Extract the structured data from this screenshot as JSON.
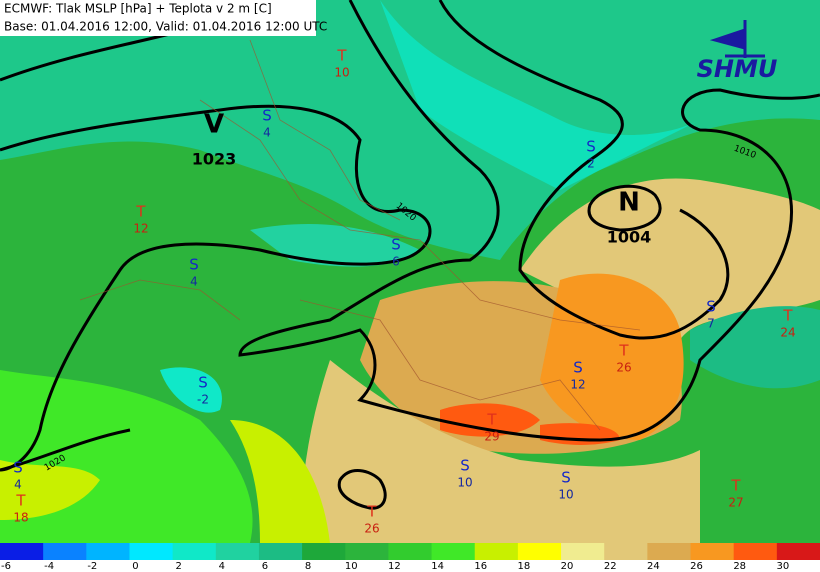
{
  "header": {
    "line1": "ECMWF: Tlak MSLP [hPa] + Teplota v 2 m [C]",
    "line2": "Base: 01.04.2016 12:00, Valid: 01.04.2016 12:00 UTC"
  },
  "logo": "SHMU",
  "pressure_centers": [
    {
      "symbol": "V",
      "value": 1023
    },
    {
      "symbol": "N",
      "value": 1004
    }
  ],
  "isobar_labels": [
    1020,
    1010,
    1020
  ],
  "stations": [
    {
      "symbol": "T",
      "value": 10
    },
    {
      "symbol": "S",
      "value": 4
    },
    {
      "symbol": "S",
      "value": 2
    },
    {
      "symbol": "T",
      "value": 12
    },
    {
      "symbol": "S",
      "value": 4
    },
    {
      "symbol": "S",
      "value": 6
    },
    {
      "symbol": "S",
      "value": 7
    },
    {
      "symbol": "T",
      "value": 24
    },
    {
      "symbol": "T",
      "value": 26
    },
    {
      "symbol": "S",
      "value": 12
    },
    {
      "symbol": "S",
      "value": -2
    },
    {
      "symbol": "T",
      "value": 29
    },
    {
      "symbol": "S",
      "value": 10
    },
    {
      "symbol": "S",
      "value": 10
    },
    {
      "symbol": "T",
      "value": 27
    },
    {
      "symbol": "T",
      "value": 26
    },
    {
      "symbol": "S",
      "value": 4
    },
    {
      "symbol": "T",
      "value": 18
    }
  ],
  "legend": {
    "labels": [
      -6,
      -4,
      -2,
      0,
      2,
      4,
      6,
      8,
      10,
      12,
      14,
      16,
      18,
      20,
      22,
      24,
      26,
      28,
      30
    ],
    "colors": [
      "#0a1ee6",
      "#0a82ff",
      "#00b4ff",
      "#00e8ff",
      "#10e8c8",
      "#20d2a0",
      "#1cbc84",
      "#1ea83a",
      "#2cb43c",
      "#32cc2e",
      "#40e828",
      "#c8f000",
      "#ffff00",
      "#f0ec90",
      "#e2c878",
      "#dcaa50",
      "#f89820",
      "#ff5a10",
      "#d81818"
    ]
  }
}
